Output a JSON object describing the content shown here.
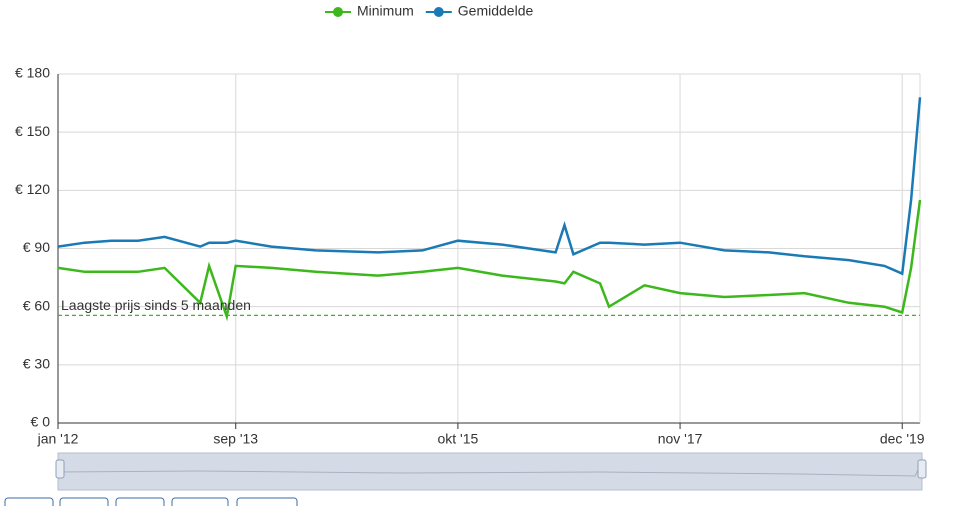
{
  "chart_data": {
    "type": "line",
    "x": [
      "2012-01",
      "2012-04",
      "2012-07",
      "2012-10",
      "2013-01",
      "2013-05",
      "2013-06",
      "2013-08",
      "2013-09",
      "2014-01",
      "2014-06",
      "2015-01",
      "2015-06",
      "2015-10",
      "2016-03",
      "2016-09",
      "2016-10",
      "2016-11",
      "2017-02",
      "2017-03",
      "2017-07",
      "2017-11",
      "2018-04",
      "2018-09",
      "2019-01",
      "2019-06",
      "2019-10",
      "2019-12",
      "2020-01",
      "2020-02"
    ],
    "series": [
      {
        "name": "Minimum",
        "color": "#3cb81c",
        "values": [
          80,
          78,
          78,
          78,
          80,
          62,
          81,
          55,
          81,
          80,
          78,
          76,
          78,
          80,
          76,
          73,
          72,
          78,
          72,
          60,
          71,
          67,
          65,
          66,
          67,
          62,
          60,
          57,
          80,
          115
        ]
      },
      {
        "name": "Gemiddelde",
        "color": "#1a7ab5",
        "values": [
          91,
          93,
          94,
          94,
          96,
          91,
          93,
          93,
          94,
          91,
          89,
          88,
          89,
          94,
          92,
          88,
          102,
          87,
          93,
          93,
          92,
          93,
          89,
          88,
          86,
          84,
          81,
          77,
          115,
          168
        ]
      }
    ],
    "xlim": [
      "2012-01",
      "2020-02"
    ],
    "xticks": [
      {
        "value": "2012-01",
        "label": "jan '12"
      },
      {
        "value": "2013-09",
        "label": "sep '13"
      },
      {
        "value": "2015-10",
        "label": "okt '15"
      },
      {
        "value": "2017-11",
        "label": "nov '17"
      },
      {
        "value": "2019-12",
        "label": "dec '19"
      }
    ],
    "ylim": [
      0,
      180
    ],
    "yticks": [
      {
        "value": 0,
        "label": "€ 0"
      },
      {
        "value": 30,
        "label": "€ 30"
      },
      {
        "value": 60,
        "label": "€ 60"
      },
      {
        "value": 90,
        "label": "€ 90"
      },
      {
        "value": 120,
        "label": "€ 120"
      },
      {
        "value": 150,
        "label": "€ 150"
      },
      {
        "value": 180,
        "label": "€ 180"
      }
    ],
    "grid": true,
    "annotation": {
      "text": "Laagste prijs sinds 5 maanden",
      "value": 55.5,
      "color": "#3cb81c"
    }
  }
}
